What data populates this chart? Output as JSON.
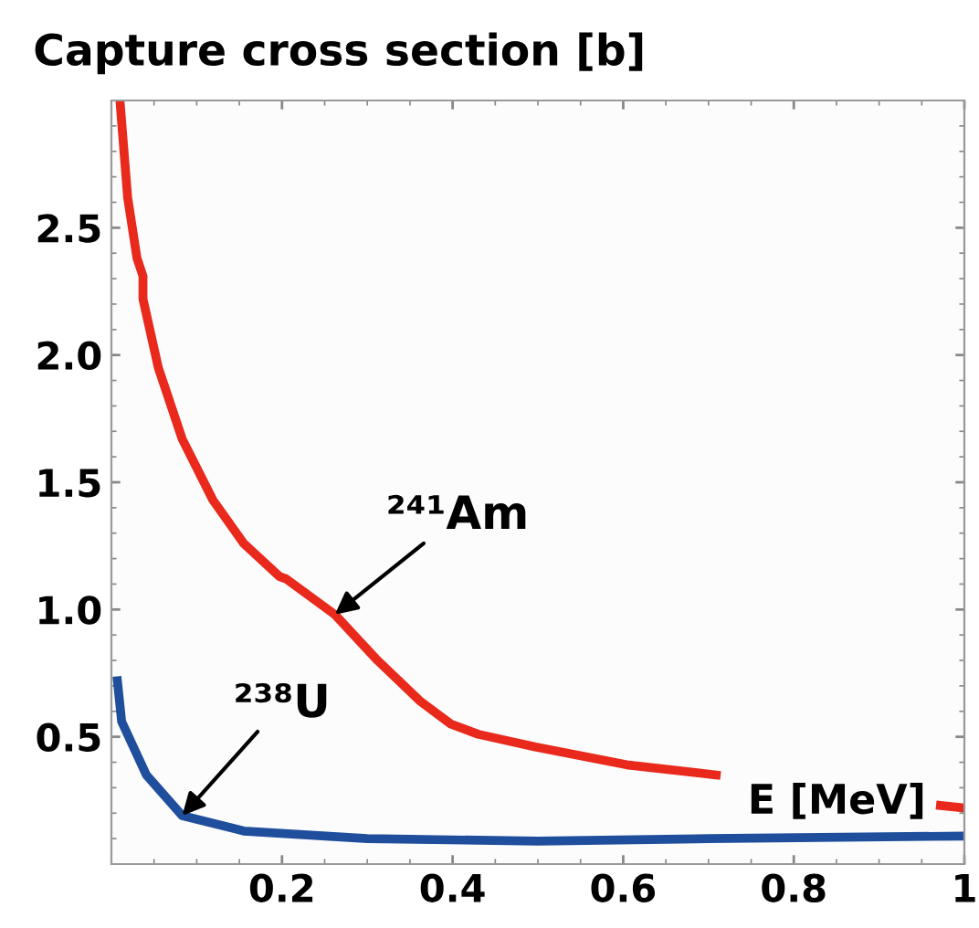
{
  "chart_data": {
    "type": "line",
    "ylabel": "Capture cross section [b]",
    "xlabel": "E [MeV]",
    "xlim": [
      0,
      1
    ],
    "ylim": [
      0,
      3
    ],
    "xticks": [
      0.2,
      0.4,
      0.6,
      0.8,
      {
        "value": 1,
        "label": "1"
      }
    ],
    "yticks": [
      0.5,
      {
        "value": 1,
        "label": "1.0"
      },
      1.5,
      {
        "value": 2,
        "label": "2.0"
      },
      2.5
    ],
    "grid": false,
    "line_style": "solid",
    "marker": "none",
    "series": [
      {
        "color": "#e8291c",
        "x": [
          0.01,
          0.019,
          0.03,
          0.037,
          0.037,
          0.055,
          0.083,
          0.119,
          0.155,
          0.197,
          0.205,
          0.262,
          0.312,
          0.362,
          0.398,
          0.43,
          0.497,
          0.604,
          0.709,
          0.8,
          0.972,
          1.0
        ],
        "values": [
          3.0,
          2.62,
          2.38,
          2.31,
          2.22,
          1.95,
          1.67,
          1.43,
          1.26,
          1.13,
          1.12,
          0.98,
          0.8,
          0.64,
          0.55,
          0.51,
          0.46,
          0.39,
          0.35,
          null,
          0.23,
          0.22
        ]
      },
      {
        "color": "#1f4e9c",
        "x": [
          0.007,
          0.012,
          0.041,
          0.083,
          0.155,
          0.3,
          0.5,
          0.7,
          1.0
        ],
        "values": [
          0.72,
          0.56,
          0.35,
          0.19,
          0.13,
          0.1,
          0.09,
          0.1,
          0.11
        ]
      }
    ],
    "annotations": [
      {
        "text": "²⁴¹Am",
        "x": 0.262,
        "y": 0.98
      },
      {
        "text": "²³⁸U",
        "x": 0.083,
        "y": 0.19
      }
    ]
  }
}
